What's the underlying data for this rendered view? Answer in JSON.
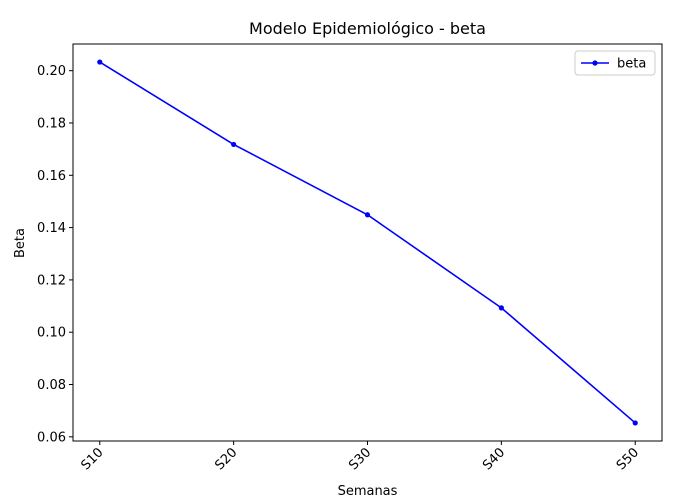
{
  "chart_data": {
    "type": "line",
    "title": "Modelo Epidemiológico - beta",
    "xlabel": "Semanas",
    "ylabel": "Beta",
    "categories": [
      "S10",
      "S20",
      "S30",
      "S40",
      "S50"
    ],
    "series": [
      {
        "name": "beta",
        "values": [
          0.2033,
          0.1718,
          0.1449,
          0.1093,
          0.0653
        ],
        "color": "#0000ff",
        "marker": "point"
      }
    ],
    "ylim": [
      0.0584,
      0.2102
    ],
    "yticks": [
      0.06,
      0.08,
      0.1,
      0.12,
      0.14,
      0.16,
      0.18,
      0.2
    ],
    "ytick_labels": [
      "0.06",
      "0.08",
      "0.10",
      "0.12",
      "0.14",
      "0.16",
      "0.18",
      "0.20"
    ],
    "grid": false,
    "legend_position": "upper right",
    "xtick_rotation": 45
  }
}
